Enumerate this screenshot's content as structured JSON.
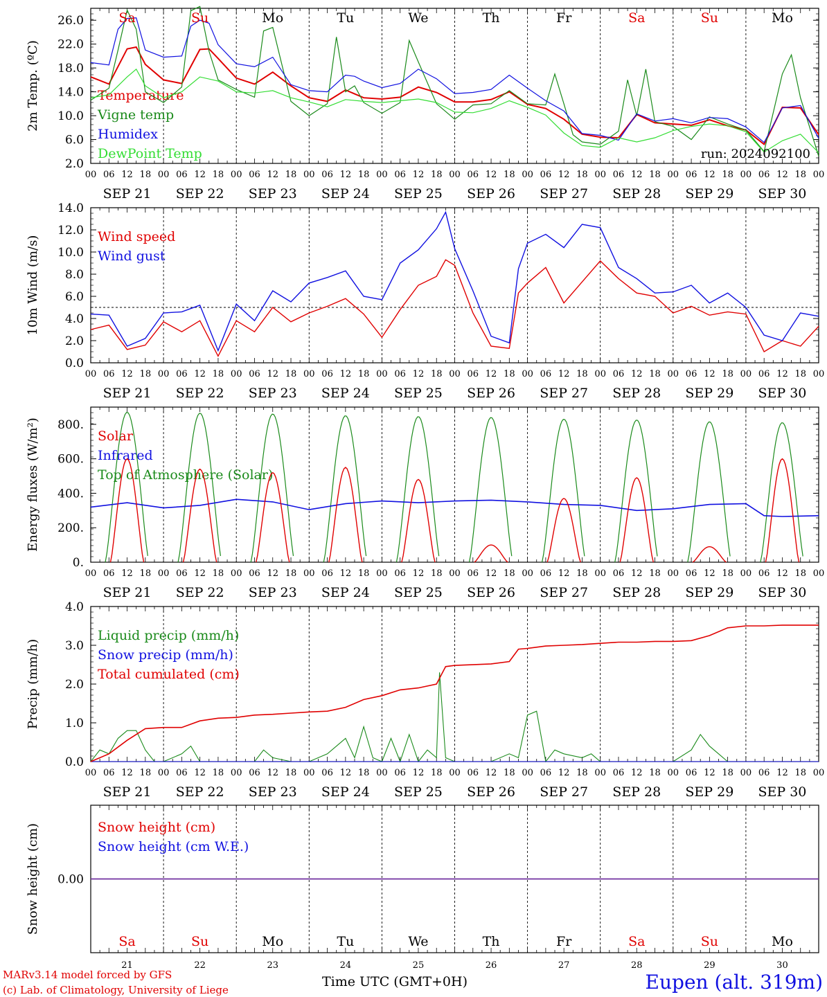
{
  "run_label": "run: 2024092100",
  "days": {
    "weekdays": [
      "Sa",
      "Su",
      "Mo",
      "Tu",
      "We",
      "Th",
      "Fr",
      "Sa",
      "Su",
      "Mo"
    ],
    "weekend": [
      true,
      true,
      false,
      false,
      false,
      false,
      false,
      true,
      true,
      false
    ],
    "dates": [
      "SEP 21",
      "SEP 22",
      "SEP 23",
      "SEP 24",
      "SEP 25",
      "SEP 26",
      "SEP 27",
      "SEP 28",
      "SEP 29",
      "SEP 30"
    ],
    "day_numbers": [
      "21",
      "22",
      "23",
      "24",
      "25",
      "26",
      "27",
      "28",
      "29",
      "30"
    ],
    "hour_labels": [
      "00",
      "06",
      "12",
      "18"
    ],
    "last_hour_label": "00"
  },
  "colors": {
    "red": "#e00000",
    "green": "#1a8a1a",
    "blue": "#1010e0",
    "lightgreen": "#33dd33",
    "purple": "#7030a0",
    "weekend_day": "#e00000"
  },
  "footer": {
    "xlabel": "Time UTC (GMT+0H)",
    "model_line": "MARv3.14 model forced by GFS",
    "copyright_line": "(c) Lab. of Climatology, University of Liege",
    "station": "Eupen (alt. 319m)"
  },
  "chart_data": [
    {
      "type": "line",
      "ylabel": "2m Temp. (ºC)",
      "ylim": [
        2,
        28
      ],
      "yticks": [
        "2.0",
        "6.0",
        "10.0",
        "14.0",
        "18.0",
        "22.0",
        "26.0"
      ],
      "legend": [
        "Temperature",
        "Vigne temp",
        "Humidex",
        "DewPoint Temp"
      ],
      "x_hours": "0 to 240 in 3h steps (SEP 21 00 UTC – OCT 1 00 UTC)",
      "series": [
        {
          "name": "Temperature",
          "color": "#e00000",
          "x": [
            0,
            6,
            12,
            15,
            18,
            24,
            30,
            36,
            39,
            42,
            48,
            54,
            60,
            66,
            72,
            78,
            84,
            90,
            96,
            102,
            108,
            114,
            120,
            126,
            132,
            138,
            144,
            150,
            156,
            162,
            168,
            174,
            180,
            186,
            192,
            198,
            204,
            210,
            216,
            222,
            228,
            234,
            240
          ],
          "values": [
            16.5,
            15.3,
            21.2,
            21.5,
            18.6,
            16.0,
            15.4,
            21.1,
            21.2,
            19.6,
            16.3,
            15.3,
            17.3,
            15.0,
            13.0,
            12.4,
            14.3,
            13.0,
            12.8,
            13.1,
            14.8,
            13.9,
            12.3,
            12.3,
            12.7,
            14.0,
            11.9,
            11.2,
            9.4,
            6.9,
            6.4,
            6.3,
            10.2,
            8.8,
            8.6,
            8.4,
            9.3,
            8.3,
            7.6,
            5.2,
            11.4,
            11.3,
            6.8
          ]
        },
        {
          "name": "Vigne temp",
          "color": "#1a8a1a",
          "x": [
            0,
            6,
            9,
            12,
            15,
            18,
            24,
            30,
            33,
            36,
            39,
            42,
            48,
            54,
            57,
            60,
            66,
            72,
            78,
            81,
            84,
            87,
            90,
            96,
            102,
            105,
            108,
            114,
            120,
            126,
            132,
            138,
            144,
            150,
            153,
            156,
            159,
            162,
            168,
            174,
            177,
            180,
            183,
            186,
            192,
            198,
            204,
            210,
            216,
            222,
            228,
            231,
            234,
            240
          ],
          "values": [
            12.6,
            14.6,
            21.0,
            27.7,
            24.5,
            14.0,
            12.2,
            14.8,
            27.6,
            28.3,
            20.8,
            16.0,
            14.4,
            13.1,
            24.2,
            24.8,
            12.4,
            10.0,
            12.0,
            23.2,
            14.0,
            15.0,
            12.2,
            10.4,
            12.2,
            22.6,
            19.0,
            12.0,
            9.4,
            11.8,
            12.0,
            14.2,
            12.0,
            11.8,
            17.0,
            12.0,
            6.8,
            5.6,
            5.2,
            7.4,
            16.0,
            10.0,
            17.8,
            9.0,
            8.2,
            6.0,
            9.8,
            8.6,
            7.6,
            4.0,
            17.0,
            20.2,
            13.0,
            3.2
          ]
        },
        {
          "name": "Humidex",
          "color": "#1010e0",
          "x": [
            0,
            6,
            9,
            12,
            15,
            18,
            24,
            30,
            33,
            36,
            39,
            42,
            48,
            54,
            60,
            66,
            72,
            78,
            84,
            87,
            90,
            96,
            102,
            108,
            114,
            120,
            126,
            132,
            138,
            144,
            150,
            156,
            162,
            168,
            174,
            180,
            186,
            192,
            198,
            204,
            210,
            216,
            222,
            228,
            234,
            240
          ],
          "values": [
            18.9,
            18.5,
            24.5,
            26.3,
            26.4,
            21.0,
            19.8,
            20.0,
            25.0,
            26.0,
            25.5,
            21.9,
            18.7,
            18.2,
            19.8,
            15.2,
            14.2,
            14.0,
            16.8,
            16.6,
            15.8,
            14.7,
            15.4,
            17.8,
            16.2,
            13.7,
            13.9,
            14.4,
            16.8,
            14.6,
            12.5,
            10.8,
            7.0,
            6.7,
            5.9,
            10.3,
            9.1,
            9.5,
            8.8,
            9.7,
            9.5,
            8.1,
            5.5,
            11.3,
            11.7,
            6.2
          ]
        },
        {
          "name": "DewPoint Temp",
          "color": "#33dd33",
          "x": [
            0,
            6,
            12,
            15,
            18,
            24,
            30,
            36,
            42,
            48,
            54,
            60,
            66,
            72,
            78,
            84,
            90,
            96,
            102,
            108,
            114,
            120,
            126,
            132,
            138,
            144,
            150,
            156,
            162,
            168,
            174,
            180,
            186,
            192,
            198,
            204,
            210,
            216,
            222,
            228,
            234,
            240
          ],
          "values": [
            13.0,
            13.5,
            16.5,
            17.8,
            15.0,
            13.0,
            14.0,
            16.5,
            15.8,
            14.0,
            13.8,
            14.2,
            13.0,
            12.3,
            11.5,
            12.7,
            12.4,
            12.2,
            12.5,
            12.8,
            12.2,
            10.6,
            10.5,
            11.2,
            12.5,
            11.4,
            10.1,
            7.1,
            5.0,
            4.7,
            6.3,
            5.6,
            6.3,
            7.5,
            8.2,
            8.6,
            8.3,
            7.3,
            3.9,
            5.8,
            6.9,
            3.8
          ]
        }
      ]
    },
    {
      "type": "line",
      "ylabel": "10m Wind (m/s)",
      "ylim": [
        0,
        14
      ],
      "yticks": [
        "0.0",
        "2.0",
        "4.0",
        "6.0",
        "8.0",
        "10.0",
        "12.0",
        "14.0"
      ],
      "reference_line": 5,
      "legend": [
        "Wind speed",
        "Wind gust"
      ],
      "series": [
        {
          "name": "Wind speed",
          "color": "#e00000",
          "x": [
            0,
            6,
            12,
            18,
            24,
            30,
            36,
            42,
            48,
            54,
            60,
            66,
            72,
            78,
            84,
            90,
            96,
            102,
            108,
            114,
            117,
            120,
            126,
            132,
            138,
            141,
            144,
            150,
            156,
            162,
            168,
            174,
            180,
            186,
            192,
            198,
            204,
            210,
            216,
            222,
            228,
            234,
            240
          ],
          "values": [
            3.0,
            3.4,
            1.2,
            1.6,
            3.7,
            2.8,
            3.8,
            0.6,
            3.8,
            2.8,
            5.0,
            3.7,
            4.5,
            5.1,
            5.8,
            4.4,
            2.3,
            4.8,
            7.0,
            7.8,
            9.3,
            8.8,
            4.5,
            1.5,
            1.3,
            6.3,
            7.2,
            8.6,
            5.4,
            7.3,
            9.2,
            7.6,
            6.3,
            6.0,
            4.5,
            5.1,
            4.3,
            4.6,
            4.4,
            1.0,
            2.0,
            1.5,
            3.3
          ]
        },
        {
          "name": "Wind gust",
          "color": "#1010e0",
          "x": [
            0,
            6,
            12,
            18,
            24,
            30,
            36,
            42,
            48,
            54,
            60,
            66,
            72,
            78,
            84,
            90,
            96,
            102,
            108,
            114,
            117,
            120,
            126,
            132,
            138,
            141,
            144,
            150,
            156,
            162,
            168,
            174,
            180,
            186,
            192,
            198,
            204,
            210,
            216,
            222,
            228,
            234,
            240
          ],
          "values": [
            4.4,
            4.3,
            1.5,
            2.2,
            4.5,
            4.6,
            5.2,
            1.1,
            5.3,
            3.8,
            6.5,
            5.5,
            7.2,
            7.7,
            8.3,
            6.0,
            5.7,
            9.0,
            10.2,
            12.1,
            13.6,
            10.3,
            6.5,
            2.4,
            1.8,
            8.5,
            10.8,
            11.6,
            10.4,
            12.5,
            12.2,
            8.6,
            7.6,
            6.3,
            6.4,
            7.0,
            5.4,
            6.3,
            5.0,
            2.5,
            2.0,
            4.5,
            4.2
          ]
        }
      ]
    },
    {
      "type": "line",
      "ylabel": "Energy fluxes (W/m²)",
      "ylim": [
        0,
        900
      ],
      "yticks": [
        "0.",
        "200.",
        "400.",
        "600.",
        "800."
      ],
      "legend": [
        "Solar",
        "Infrared",
        "Top of Atmosphere (Solar)"
      ],
      "series": [
        {
          "name": "Solar",
          "color": "#e00000",
          "daily_peak": [
            600,
            540,
            520,
            550,
            480,
            100,
            370,
            490,
            90,
            600
          ]
        },
        {
          "name": "Infrared",
          "color": "#1010e0",
          "x": [
            0,
            12,
            24,
            36,
            48,
            60,
            72,
            84,
            96,
            108,
            120,
            132,
            144,
            156,
            168,
            180,
            192,
            204,
            216,
            222,
            228,
            240
          ],
          "values": [
            320,
            345,
            315,
            330,
            365,
            350,
            305,
            340,
            355,
            345,
            355,
            360,
            350,
            335,
            330,
            300,
            310,
            335,
            340,
            270,
            265,
            270
          ]
        },
        {
          "name": "Top of Atmosphere (Solar)",
          "color": "#1a8a1a",
          "daily_peak": [
            870,
            865,
            860,
            850,
            845,
            840,
            830,
            825,
            815,
            810
          ]
        }
      ]
    },
    {
      "type": "line",
      "ylabel": "Precip (mm/h)",
      "ylim": [
        0,
        4
      ],
      "yticks": [
        "0.0",
        "1.0",
        "2.0",
        "3.0",
        "4.0"
      ],
      "legend": [
        "Liquid precip (mm/h)",
        "Snow precip (mm/h)",
        "Total cumulated (cm)"
      ],
      "series": [
        {
          "name": "Liquid precip (mm/h)",
          "color": "#1a8a1a",
          "x": [
            0,
            3,
            6,
            9,
            12,
            15,
            18,
            21,
            24,
            30,
            33,
            36,
            39,
            42,
            48,
            54,
            57,
            60,
            66,
            72,
            78,
            84,
            87,
            90,
            93,
            96,
            99,
            102,
            105,
            108,
            111,
            114,
            115,
            117,
            120,
            132,
            138,
            141,
            144,
            147,
            150,
            153,
            156,
            162,
            165,
            168,
            174,
            180,
            186,
            192,
            198,
            201,
            204,
            207,
            210,
            216,
            240
          ],
          "values": [
            0.0,
            0.3,
            0.2,
            0.6,
            0.8,
            0.8,
            0.3,
            0.0,
            0.0,
            0.2,
            0.4,
            0.0,
            0.0,
            0.0,
            0.0,
            0.0,
            0.3,
            0.1,
            0.0,
            0.0,
            0.2,
            0.6,
            0.1,
            0.9,
            0.1,
            0.0,
            0.6,
            0.0,
            0.7,
            0.0,
            0.3,
            0.1,
            2.3,
            0.1,
            0.0,
            0.0,
            0.2,
            0.1,
            1.2,
            1.3,
            0.0,
            0.3,
            0.2,
            0.1,
            0.2,
            0.0,
            0.0,
            0.0,
            0.0,
            0.0,
            0.3,
            0.7,
            0.4,
            0.2,
            0.0,
            0.0,
            0.0
          ]
        },
        {
          "name": "Snow precip (mm/h)",
          "color": "#1010e0",
          "x": [
            0,
            240
          ],
          "values": [
            0,
            0
          ]
        },
        {
          "name": "Total cumulated (cm)",
          "color": "#e00000",
          "x": [
            0,
            6,
            12,
            18,
            24,
            30,
            36,
            42,
            48,
            54,
            60,
            66,
            72,
            78,
            84,
            90,
            96,
            102,
            108,
            114,
            117,
            120,
            132,
            138,
            141,
            144,
            150,
            156,
            162,
            168,
            174,
            180,
            186,
            192,
            198,
            204,
            210,
            216,
            222,
            228,
            234,
            240
          ],
          "values": [
            0.0,
            0.2,
            0.55,
            0.85,
            0.88,
            0.88,
            1.05,
            1.12,
            1.14,
            1.2,
            1.22,
            1.25,
            1.28,
            1.3,
            1.4,
            1.6,
            1.7,
            1.85,
            1.9,
            2.0,
            2.45,
            2.48,
            2.52,
            2.58,
            2.9,
            2.92,
            2.98,
            3.0,
            3.02,
            3.05,
            3.08,
            3.08,
            3.1,
            3.1,
            3.12,
            3.25,
            3.45,
            3.5,
            3.5,
            3.52,
            3.52,
            3.52
          ]
        }
      ]
    },
    {
      "type": "line",
      "ylabel": "Snow height (cm)",
      "ylim": [
        -1,
        1
      ],
      "yticks": [
        "0.00"
      ],
      "legend": [
        "Snow height (cm)",
        "Snow height (cm W.E.)"
      ],
      "series": [
        {
          "name": "Snow height (cm)",
          "color": "#e00000",
          "x": [
            0,
            240
          ],
          "values": [
            0,
            0
          ]
        },
        {
          "name": "Snow height (cm W.E.)",
          "color": "#1010e0",
          "x": [
            0,
            240
          ],
          "values": [
            0,
            0
          ]
        }
      ]
    }
  ]
}
